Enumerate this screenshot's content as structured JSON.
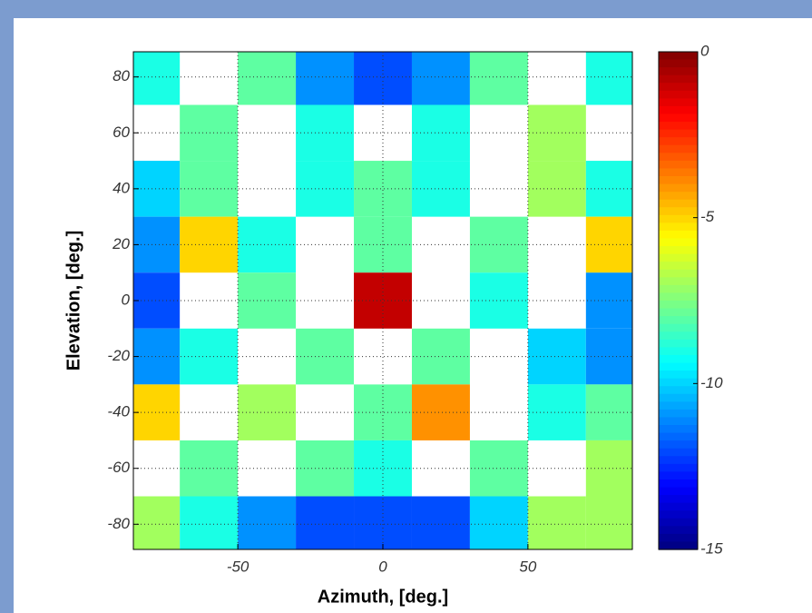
{
  "chart_data": {
    "type": "heatmap",
    "colormap": "jet",
    "grid": true,
    "xlabel": "Azimuth, [deg.]",
    "ylabel": "Elevation, [deg.]",
    "xlim": [
      -86,
      86
    ],
    "ylim": [
      -89,
      89
    ],
    "xticks": [
      -50,
      0,
      50
    ],
    "yticks": [
      -80,
      -60,
      -40,
      -20,
      0,
      20,
      40,
      60,
      80
    ],
    "clim": [
      -15,
      0
    ],
    "cticks": [
      -15,
      -10,
      -5,
      0
    ],
    "x": [
      -80,
      -60,
      -40,
      -20,
      0,
      20,
      40,
      60,
      80
    ],
    "y": [
      80,
      60,
      40,
      20,
      0,
      -20,
      -40,
      -60,
      -80
    ],
    "z": [
      [
        -9,
        null,
        -8,
        -11,
        -12,
        -11,
        -8,
        null,
        -9
      ],
      [
        null,
        -8,
        null,
        -9,
        null,
        -9,
        null,
        -7,
        null
      ],
      [
        -10,
        -8,
        null,
        -9,
        -8,
        -9,
        null,
        -7,
        -9
      ],
      [
        -11,
        -5,
        -9,
        null,
        -8,
        null,
        -8,
        null,
        -5
      ],
      [
        -12,
        null,
        -8,
        null,
        -1,
        null,
        -9,
        null,
        -11
      ],
      [
        -11,
        -9,
        null,
        -8,
        null,
        -8,
        null,
        -10,
        -11
      ],
      [
        -5,
        null,
        -7,
        null,
        -8,
        -4,
        null,
        -9,
        -8
      ],
      [
        null,
        -8,
        null,
        -8,
        -9,
        null,
        -8,
        null,
        -7
      ],
      [
        -7,
        -9,
        -11,
        -12,
        -12,
        -12,
        -10,
        -7,
        -7
      ]
    ]
  }
}
